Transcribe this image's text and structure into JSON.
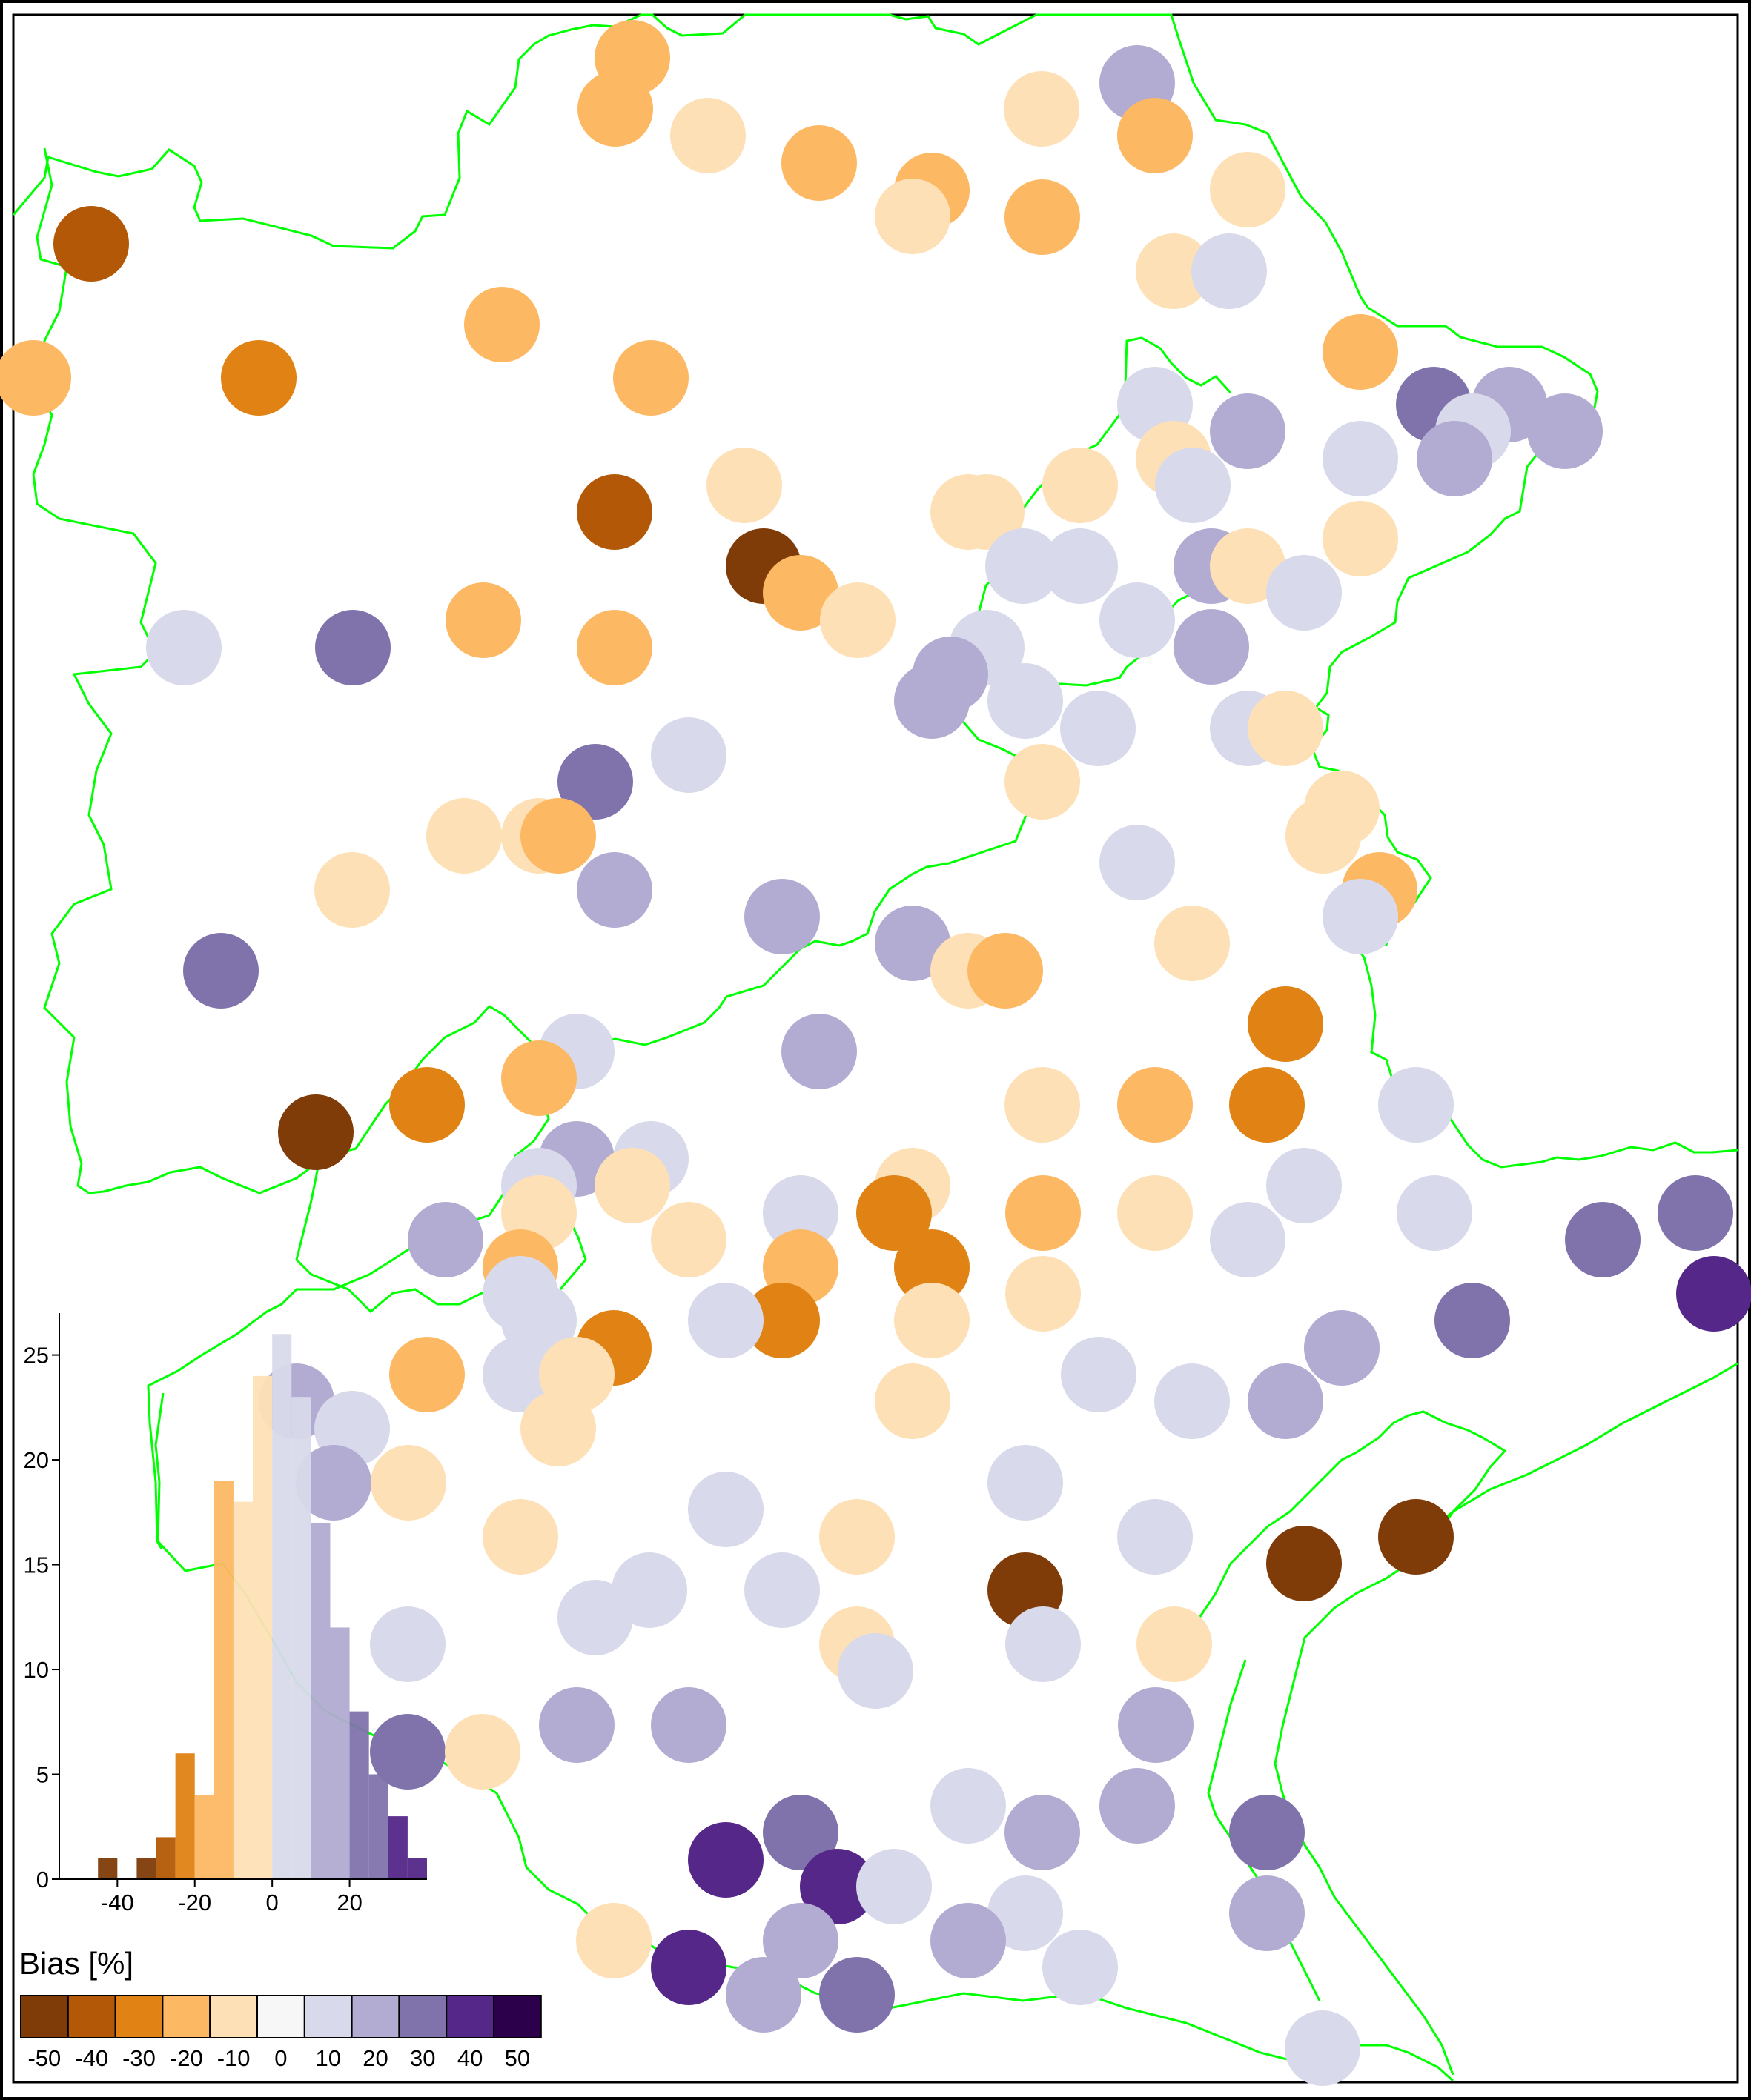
{
  "legend": {
    "title": "Bias [%]",
    "bins": [
      {
        "label": "-50",
        "color": "#7f3b08"
      },
      {
        "label": "-40",
        "color": "#b35806"
      },
      {
        "label": "-30",
        "color": "#e08214"
      },
      {
        "label": "-20",
        "color": "#fdb863"
      },
      {
        "label": "-10",
        "color": "#fee0b6"
      },
      {
        "label": "0",
        "color": "#f7f7f7"
      },
      {
        "label": "10",
        "color": "#d8daeb"
      },
      {
        "label": "20",
        "color": "#b2abd2"
      },
      {
        "label": "30",
        "color": "#8073ac"
      },
      {
        "label": "40",
        "color": "#542788"
      },
      {
        "label": "50",
        "color": "#2d004b"
      }
    ]
  },
  "border_color": "#00ff00",
  "chart_data": {
    "type": "bar",
    "description_source": "inset histogram of station bias values",
    "bin_width": 5,
    "x_ticks": [
      "-40",
      "-20",
      "0",
      "20"
    ],
    "y_ticks": [
      "0",
      "5",
      "10",
      "15",
      "20",
      "25"
    ],
    "ylim": [
      0,
      27
    ],
    "xlim": [
      -55,
      40
    ],
    "bins": [
      {
        "start": -45,
        "count": 1,
        "color": "#7f3b08"
      },
      {
        "start": -35,
        "count": 1,
        "color": "#7f3b08"
      },
      {
        "start": -30,
        "count": 2,
        "color": "#b35806"
      },
      {
        "start": -25,
        "count": 6,
        "color": "#e08214"
      },
      {
        "start": -20,
        "count": 4,
        "color": "#fdb863"
      },
      {
        "start": -15,
        "count": 19,
        "color": "#fdb863"
      },
      {
        "start": -10,
        "count": 18,
        "color": "#fee0b6"
      },
      {
        "start": -5,
        "count": 24,
        "color": "#fee0b6"
      },
      {
        "start": 0,
        "count": 26,
        "color": "#d8daeb"
      },
      {
        "start": 5,
        "count": 23,
        "color": "#d8daeb"
      },
      {
        "start": 10,
        "count": 17,
        "color": "#b2abd2"
      },
      {
        "start": 15,
        "count": 12,
        "color": "#b2abd2"
      },
      {
        "start": 20,
        "count": 8,
        "color": "#8073ac"
      },
      {
        "start": 25,
        "count": 5,
        "color": "#8073ac"
      },
      {
        "start": 30,
        "count": 3,
        "color": "#542788"
      },
      {
        "start": 35,
        "count": 1,
        "color": "#542788"
      }
    ]
  },
  "stations": [
    {
      "c": "#fdb863",
      "p": [
        853,
        78
      ]
    },
    {
      "c": "#fdb863",
      "p": [
        830,
        147
      ]
    },
    {
      "c": "#fee0b6",
      "p": [
        955,
        183
      ]
    },
    {
      "c": "#fdb863",
      "p": [
        1105,
        220
      ]
    },
    {
      "c": "#fdb863",
      "p": [
        1257,
        257
      ]
    },
    {
      "c": "#fee0b6",
      "p": [
        1231,
        292
      ]
    },
    {
      "c": "#fdb863",
      "p": [
        1406,
        293
      ]
    },
    {
      "c": "#fee0b6",
      "p": [
        1405,
        147
      ]
    },
    {
      "c": "#b2abd2",
      "p": [
        1534,
        112
      ]
    },
    {
      "c": "#fdb863",
      "p": [
        1558,
        183
      ]
    },
    {
      "c": "#fee0b6",
      "p": [
        1683,
        256
      ]
    },
    {
      "c": "#fee0b6",
      "p": [
        1583,
        366
      ]
    },
    {
      "c": "#d8daeb",
      "p": [
        1658,
        366
      ]
    },
    {
      "c": "#b35806",
      "p": [
        123,
        329
      ]
    },
    {
      "c": "#fdb863",
      "p": [
        677,
        438
      ]
    },
    {
      "c": "#fdb863",
      "p": [
        45,
        510
      ]
    },
    {
      "c": "#e08214",
      "p": [
        349,
        510
      ]
    },
    {
      "c": "#fdb863",
      "p": [
        878,
        510
      ]
    },
    {
      "c": "#fdb863",
      "p": [
        1835,
        475
      ]
    },
    {
      "c": "#8073ac",
      "p": [
        1934,
        546
      ]
    },
    {
      "c": "#b2abd2",
      "p": [
        2036,
        546
      ]
    },
    {
      "c": "#d8daeb",
      "p": [
        1987,
        582
      ]
    },
    {
      "c": "#b2abd2",
      "p": [
        2111,
        582
      ]
    },
    {
      "c": "#b2abd2",
      "p": [
        1962,
        619
      ]
    },
    {
      "c": "#d8daeb",
      "p": [
        1835,
        619
      ]
    },
    {
      "c": "#b2abd2",
      "p": [
        1683,
        582
      ]
    },
    {
      "c": "#d8daeb",
      "p": [
        1558,
        546
      ]
    },
    {
      "c": "#fee0b6",
      "p": [
        1583,
        619
      ]
    },
    {
      "c": "#d8daeb",
      "p": [
        1609,
        655
      ]
    },
    {
      "c": "#fee0b6",
      "p": [
        1457,
        655
      ]
    },
    {
      "c": "#fee0b6",
      "p": [
        1306,
        691
      ]
    },
    {
      "c": "#fee0b6",
      "p": [
        1331,
        691
      ]
    },
    {
      "c": "#fee0b6",
      "p": [
        1004,
        655
      ]
    },
    {
      "c": "#b35806",
      "p": [
        829,
        691
      ]
    },
    {
      "c": "#7f3b08",
      "p": [
        1030,
        764
      ]
    },
    {
      "c": "#fdb863",
      "p": [
        1080,
        800
      ]
    },
    {
      "c": "#fee0b6",
      "p": [
        1157,
        837
      ]
    },
    {
      "c": "#fee0b6",
      "p": [
        1835,
        727
      ]
    },
    {
      "c": "#d8daeb",
      "p": [
        1380,
        764
      ]
    },
    {
      "c": "#d8daeb",
      "p": [
        1457,
        764
      ]
    },
    {
      "c": "#b2abd2",
      "p": [
        1634,
        764
      ]
    },
    {
      "c": "#fee0b6",
      "p": [
        1683,
        764
      ]
    },
    {
      "c": "#d8daeb",
      "p": [
        1759,
        800
      ]
    },
    {
      "c": "#d8daeb",
      "p": [
        1534,
        837
      ]
    },
    {
      "c": "#b2abd2",
      "p": [
        1634,
        873
      ]
    },
    {
      "c": "#d8daeb",
      "p": [
        248,
        874
      ]
    },
    {
      "c": "#8073ac",
      "p": [
        476,
        874
      ]
    },
    {
      "c": "#fdb863",
      "p": [
        652,
        837
      ]
    },
    {
      "c": "#fdb863",
      "p": [
        829,
        874
      ]
    },
    {
      "c": "#d8daeb",
      "p": [
        1331,
        874
      ]
    },
    {
      "c": "#b2abd2",
      "p": [
        1282,
        910
      ]
    },
    {
      "c": "#b2abd2",
      "p": [
        1257,
        946
      ]
    },
    {
      "c": "#d8daeb",
      "p": [
        1383,
        946
      ]
    },
    {
      "c": "#d8daeb",
      "p": [
        1481,
        983
      ]
    },
    {
      "c": "#d8daeb",
      "p": [
        1683,
        983
      ]
    },
    {
      "c": "#fee0b6",
      "p": [
        1734,
        983
      ]
    },
    {
      "c": "#d8daeb",
      "p": [
        929,
        1019
      ]
    },
    {
      "c": "#8073ac",
      "p": [
        803,
        1055
      ]
    },
    {
      "c": "#fee0b6",
      "p": [
        626,
        1128
      ]
    },
    {
      "c": "#fee0b6",
      "p": [
        727,
        1128
      ]
    },
    {
      "c": "#fdb863",
      "p": [
        753,
        1128
      ]
    },
    {
      "c": "#fee0b6",
      "p": [
        1406,
        1055
      ]
    },
    {
      "c": "#fee0b6",
      "p": [
        1810,
        1091
      ]
    },
    {
      "c": "#fee0b6",
      "p": [
        1785,
        1128
      ]
    },
    {
      "c": "#d8daeb",
      "p": [
        1534,
        1164
      ]
    },
    {
      "c": "#fdb863",
      "p": [
        1861,
        1201
      ]
    },
    {
      "c": "#d8daeb",
      "p": [
        1835,
        1237
      ]
    },
    {
      "c": "#fee0b6",
      "p": [
        475,
        1201
      ]
    },
    {
      "c": "#b2abd2",
      "p": [
        829,
        1201
      ]
    },
    {
      "c": "#b2abd2",
      "p": [
        1055,
        1237
      ]
    },
    {
      "c": "#b2abd2",
      "p": [
        1231,
        1273
      ]
    },
    {
      "c": "#fee0b6",
      "p": [
        1306,
        1310
      ]
    },
    {
      "c": "#fdb863",
      "p": [
        1356,
        1310
      ]
    },
    {
      "c": "#fee0b6",
      "p": [
        1608,
        1273
      ]
    },
    {
      "c": "#8073ac",
      "p": [
        298,
        1310
      ]
    },
    {
      "c": "#e08214",
      "p": [
        1734,
        1382
      ]
    },
    {
      "c": "#d8daeb",
      "p": [
        778,
        1419
      ]
    },
    {
      "c": "#fdb863",
      "p": [
        727,
        1455
      ]
    },
    {
      "c": "#b2abd2",
      "p": [
        1105,
        1419
      ]
    },
    {
      "c": "#7f3b08",
      "p": [
        426,
        1528
      ]
    },
    {
      "c": "#e08214",
      "p": [
        576,
        1491
      ]
    },
    {
      "c": "#fee0b6",
      "p": [
        1406,
        1491
      ]
    },
    {
      "c": "#fdb863",
      "p": [
        1558,
        1491
      ]
    },
    {
      "c": "#e08214",
      "p": [
        1709,
        1491
      ]
    },
    {
      "c": "#d8daeb",
      "p": [
        1910,
        1491
      ]
    },
    {
      "c": "#b2abd2",
      "p": [
        778,
        1564
      ]
    },
    {
      "c": "#d8daeb",
      "p": [
        878,
        1564
      ]
    },
    {
      "c": "#d8daeb",
      "p": [
        727,
        1600
      ]
    },
    {
      "c": "#fee0b6",
      "p": [
        727,
        1637
      ]
    },
    {
      "c": "#fee0b6",
      "p": [
        853,
        1600
      ]
    },
    {
      "c": "#d8daeb",
      "p": [
        1080,
        1637
      ]
    },
    {
      "c": "#fee0b6",
      "p": [
        1231,
        1600
      ]
    },
    {
      "c": "#e08214",
      "p": [
        1206,
        1637
      ]
    },
    {
      "c": "#fdb863",
      "p": [
        1407,
        1637
      ]
    },
    {
      "c": "#fee0b6",
      "p": [
        1558,
        1637
      ]
    },
    {
      "c": "#d8daeb",
      "p": [
        1759,
        1600
      ]
    },
    {
      "c": "#d8daeb",
      "p": [
        1683,
        1673
      ]
    },
    {
      "c": "#d8daeb",
      "p": [
        1935,
        1637
      ]
    },
    {
      "c": "#8073ac",
      "p": [
        2162,
        1673
      ]
    },
    {
      "c": "#8073ac",
      "p": [
        2287,
        1637
      ]
    },
    {
      "c": "#542788",
      "p": [
        2312,
        1746
      ]
    },
    {
      "c": "#b2abd2",
      "p": [
        601,
        1673
      ]
    },
    {
      "c": "#fdb863",
      "p": [
        702,
        1710
      ]
    },
    {
      "c": "#d8daeb",
      "p": [
        702,
        1746
      ]
    },
    {
      "c": "#fee0b6",
      "p": [
        929,
        1673
      ]
    },
    {
      "c": "#fdb863",
      "p": [
        1080,
        1710
      ]
    },
    {
      "c": "#e08214",
      "p": [
        1257,
        1710
      ]
    },
    {
      "c": "#fee0b6",
      "p": [
        1407,
        1746
      ]
    },
    {
      "c": "#e08214",
      "p": [
        1055,
        1782
      ]
    },
    {
      "c": "#fee0b6",
      "p": [
        1257,
        1782
      ]
    },
    {
      "c": "#d8daeb",
      "p": [
        727,
        1782
      ]
    },
    {
      "c": "#d8daeb",
      "p": [
        979,
        1782
      ]
    },
    {
      "c": "#e08214",
      "p": [
        828,
        1819
      ]
    },
    {
      "c": "#8073ac",
      "p": [
        1986,
        1782
      ]
    },
    {
      "c": "#b2abd2",
      "p": [
        1810,
        1819
      ]
    },
    {
      "c": "#d8daeb",
      "p": [
        702,
        1855
      ]
    },
    {
      "c": "#fdb863",
      "p": [
        576,
        1855
      ]
    },
    {
      "c": "#fee0b6",
      "p": [
        778,
        1855
      ]
    },
    {
      "c": "#fee0b6",
      "p": [
        753,
        1928
      ]
    },
    {
      "c": "#b2abd2",
      "p": [
        400,
        1891
      ]
    },
    {
      "c": "#d8daeb",
      "p": [
        475,
        1928
      ]
    },
    {
      "c": "#b2abd2",
      "p": [
        450,
        2001
      ]
    },
    {
      "c": "#fee0b6",
      "p": [
        551,
        2001
      ]
    },
    {
      "c": "#d8daeb",
      "p": [
        1482,
        1855
      ]
    },
    {
      "c": "#fee0b6",
      "p": [
        1231,
        1891
      ]
    },
    {
      "c": "#d8daeb",
      "p": [
        1608,
        1891
      ]
    },
    {
      "c": "#b2abd2",
      "p": [
        1734,
        1891
      ]
    },
    {
      "c": "#d8daeb",
      "p": [
        1383,
        2001
      ]
    },
    {
      "c": "#d8daeb",
      "p": [
        979,
        2037
      ]
    },
    {
      "c": "#fee0b6",
      "p": [
        702,
        2074
      ]
    },
    {
      "c": "#fee0b6",
      "p": [
        1156,
        2074
      ]
    },
    {
      "c": "#d8daeb",
      "p": [
        1558,
        2074
      ]
    },
    {
      "c": "#d8daeb",
      "p": [
        1055,
        2146
      ]
    },
    {
      "c": "#d8daeb",
      "p": [
        876,
        2146
      ]
    },
    {
      "c": "#d8daeb",
      "p": [
        803,
        2183
      ]
    },
    {
      "c": "#7f3b08",
      "p": [
        1383,
        2146
      ]
    },
    {
      "c": "#fee0b6",
      "p": [
        1156,
        2219
      ]
    },
    {
      "c": "#d8daeb",
      "p": [
        1181,
        2255
      ]
    },
    {
      "c": "#d8daeb",
      "p": [
        1407,
        2219
      ]
    },
    {
      "c": "#fee0b6",
      "p": [
        1584,
        2219
      ]
    },
    {
      "c": "#7f3b08",
      "p": [
        1759,
        2110
      ]
    },
    {
      "c": "#7f3b08",
      "p": [
        1910,
        2074
      ]
    },
    {
      "c": "#d8daeb",
      "p": [
        550,
        2219
      ]
    },
    {
      "c": "#8073ac",
      "p": [
        550,
        2364
      ]
    },
    {
      "c": "#fee0b6",
      "p": [
        651,
        2364
      ]
    },
    {
      "c": "#b2abd2",
      "p": [
        778,
        2328
      ]
    },
    {
      "c": "#b2abd2",
      "p": [
        929,
        2328
      ]
    },
    {
      "c": "#b2abd2",
      "p": [
        1559,
        2328
      ]
    },
    {
      "c": "#b2abd2",
      "p": [
        1534,
        2437
      ]
    },
    {
      "c": "#8073ac",
      "p": [
        1709,
        2473
      ]
    },
    {
      "c": "#b2abd2",
      "p": [
        1709,
        2582
      ]
    },
    {
      "c": "#d8daeb",
      "p": [
        1306,
        2437
      ]
    },
    {
      "c": "#b2abd2",
      "p": [
        1406,
        2473
      ]
    },
    {
      "c": "#d8daeb",
      "p": [
        1383,
        2582
      ]
    },
    {
      "c": "#d8daeb",
      "p": [
        1457,
        2655
      ]
    },
    {
      "c": "#b2abd2",
      "p": [
        1306,
        2619
      ]
    },
    {
      "c": "#8073ac",
      "p": [
        1080,
        2473
      ]
    },
    {
      "c": "#542788",
      "p": [
        979,
        2510
      ]
    },
    {
      "c": "#542788",
      "p": [
        1130,
        2546
      ]
    },
    {
      "c": "#d8daeb",
      "p": [
        1206,
        2546
      ]
    },
    {
      "c": "#b2abd2",
      "p": [
        1080,
        2619
      ]
    },
    {
      "c": "#fee0b6",
      "p": [
        828,
        2619
      ]
    },
    {
      "c": "#542788",
      "p": [
        929,
        2655
      ]
    },
    {
      "c": "#b2abd2",
      "p": [
        1030,
        2692
      ]
    },
    {
      "c": "#8073ac",
      "p": [
        1156,
        2692
      ]
    },
    {
      "c": "#d8daeb",
      "p": [
        1784,
        2764
      ]
    }
  ]
}
